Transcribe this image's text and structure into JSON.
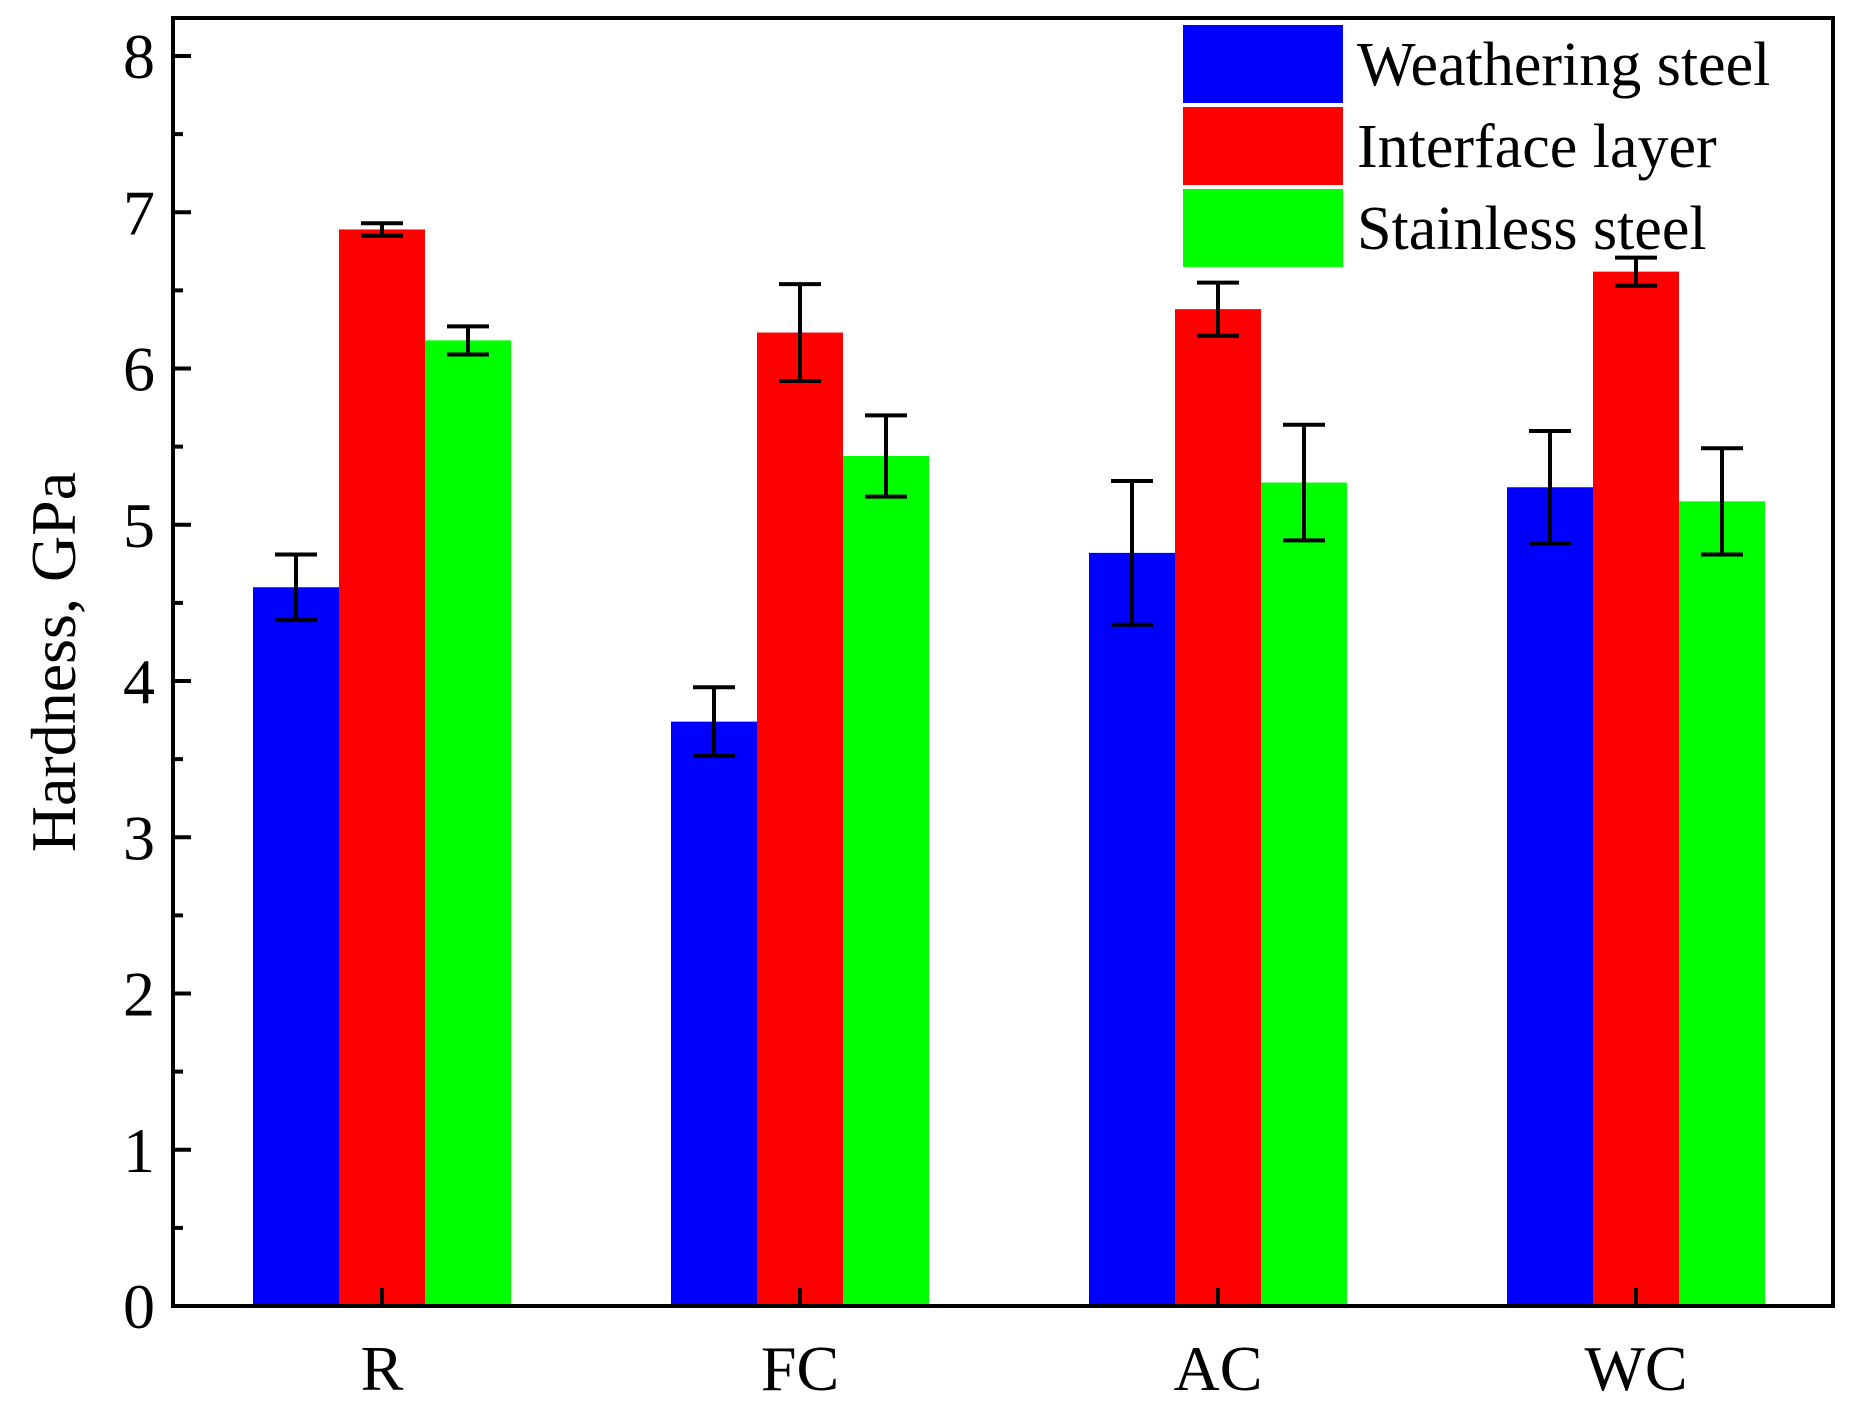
{
  "chart_data": {
    "type": "bar",
    "title": "",
    "xlabel": "",
    "ylabel": "Hardness, GPa",
    "ylim": [
      0,
      8
    ],
    "yticks": [
      "0",
      "1",
      "2",
      "3",
      "4",
      "5",
      "6",
      "7",
      "8"
    ],
    "categories": [
      "R",
      "FC",
      "AC",
      "WC"
    ],
    "grid": false,
    "legend_position": "top-right",
    "series": [
      {
        "name": "Weathering steel",
        "color": "#0000ff",
        "values": [
          4.6,
          3.74,
          4.82,
          5.24
        ],
        "errors": [
          0.21,
          0.22,
          0.46,
          0.36
        ]
      },
      {
        "name": "Interface layer",
        "color": "#ff0000",
        "values": [
          6.89,
          6.23,
          6.38,
          6.62
        ],
        "errors": [
          0.04,
          0.31,
          0.17,
          0.09
        ]
      },
      {
        "name": "Stainless steel",
        "color": "#00ff00",
        "values": [
          6.18,
          5.44,
          5.27,
          5.15
        ],
        "errors": [
          0.09,
          0.26,
          0.37,
          0.34
        ]
      }
    ]
  }
}
